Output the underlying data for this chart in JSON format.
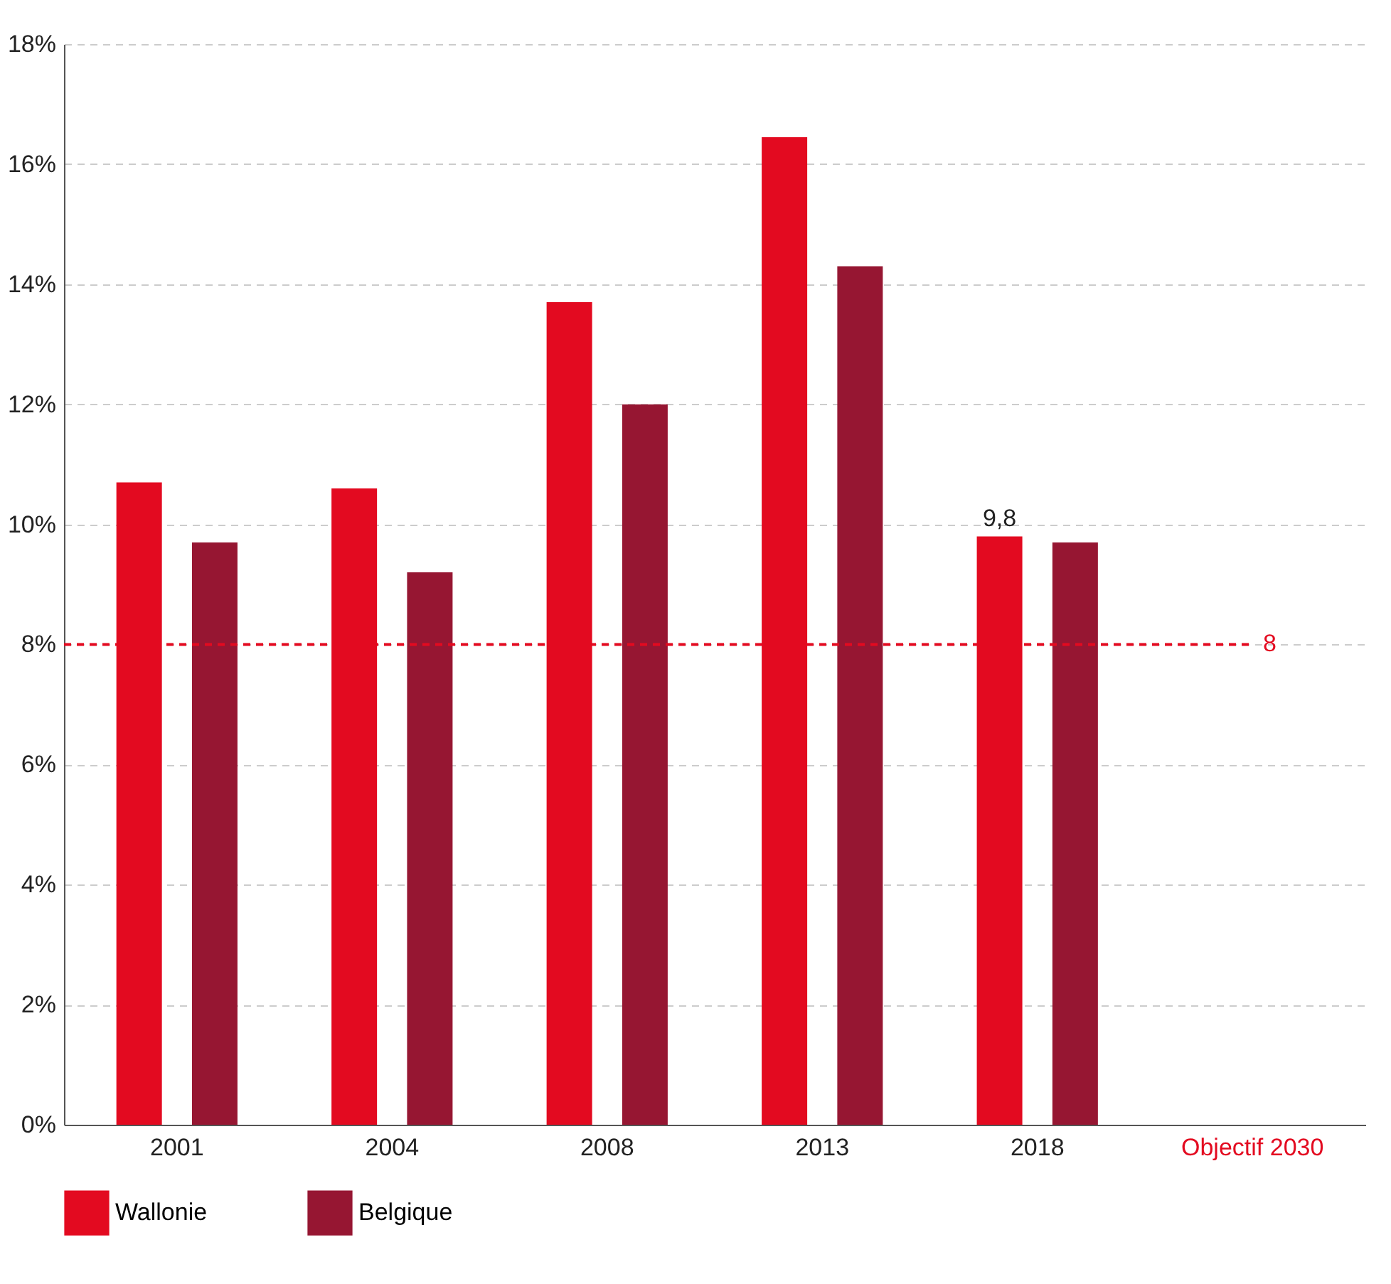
{
  "chart_data": {
    "type": "bar",
    "categories": [
      "2001",
      "2004",
      "2008",
      "2013",
      "2018",
      "Objectif 2030"
    ],
    "series": [
      {
        "name": "Wallonie",
        "color": "#e30a20",
        "values": [
          10.7,
          10.6,
          13.7,
          16.45,
          9.8,
          null
        ],
        "value_labels": [
          null,
          null,
          null,
          null,
          "9,8",
          null
        ]
      },
      {
        "name": "Belgique",
        "color": "#961632",
        "values": [
          9.7,
          9.2,
          12.0,
          14.3,
          9.7,
          null
        ]
      }
    ],
    "ylim": [
      0,
      18
    ],
    "yticks": [
      {
        "value": 0,
        "label": "0%"
      },
      {
        "value": 2,
        "label": "2%"
      },
      {
        "value": 4,
        "label": "4%"
      },
      {
        "value": 6,
        "label": "6%"
      },
      {
        "value": 8,
        "label": "8%"
      },
      {
        "value": 10,
        "label": "10%"
      },
      {
        "value": 12,
        "label": "12%"
      },
      {
        "value": 14,
        "label": "14%"
      },
      {
        "value": 16,
        "label": "16%"
      },
      {
        "value": 18,
        "label": "18%"
      }
    ],
    "grid": "y",
    "legend": "bottom",
    "ref_lines": [
      {
        "axis": "y",
        "value": 8,
        "label": "8",
        "color": "#e30a20",
        "line_style": "dashed"
      }
    ]
  }
}
